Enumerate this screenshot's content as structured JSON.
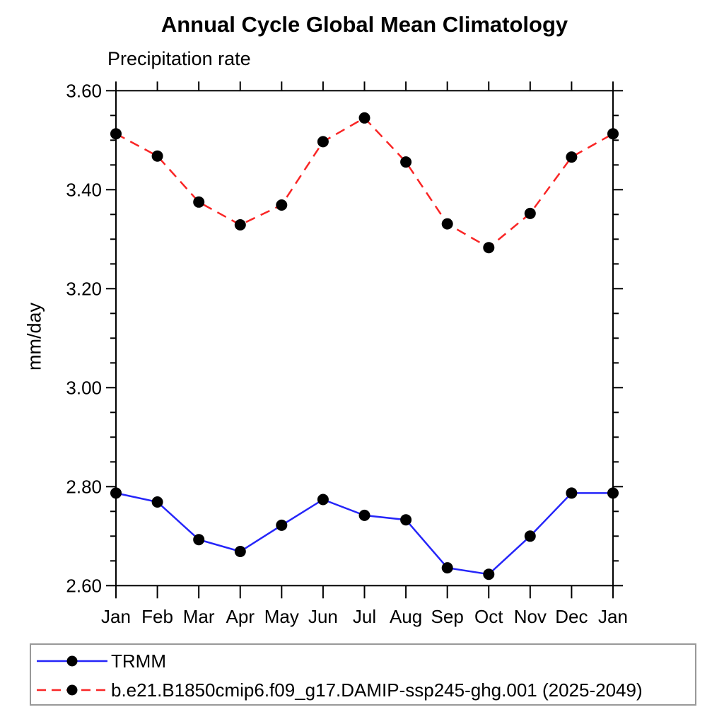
{
  "chart_data": {
    "type": "line",
    "title": "Annual Cycle Global Mean Climatology",
    "subtitle": "Precipitation rate",
    "xlabel": "",
    "ylabel": "mm/day",
    "categories": [
      "Jan",
      "Feb",
      "Mar",
      "Apr",
      "May",
      "Jun",
      "Jul",
      "Aug",
      "Sep",
      "Oct",
      "Nov",
      "Dec",
      "Jan"
    ],
    "ylim": [
      2.6,
      3.6
    ],
    "y_tick_labels": [
      "2.60",
      "2.80",
      "3.00",
      "3.20",
      "3.40",
      "3.60"
    ],
    "y_minor_step": 0.05,
    "grid": false,
    "legend_position": "bottom-left",
    "marker_color": "#000000",
    "axis_color": "#000000",
    "legend_border_color": "#999999",
    "series": [
      {
        "name": "TRMM",
        "style": "solid",
        "color": "#2525f9",
        "values": [
          2.787,
          2.769,
          2.693,
          2.669,
          2.722,
          2.774,
          2.742,
          2.733,
          2.636,
          2.623,
          2.7,
          2.787,
          2.787
        ]
      },
      {
        "name": "b.e21.B1850cmip6.f09_g17.DAMIP-ssp245-ghg.001 (2025-2049)",
        "style": "dashed",
        "color": "#f92525",
        "values": [
          3.513,
          3.468,
          3.375,
          3.329,
          3.369,
          3.497,
          3.545,
          3.456,
          3.331,
          3.283,
          3.352,
          3.466,
          3.513
        ]
      }
    ]
  }
}
